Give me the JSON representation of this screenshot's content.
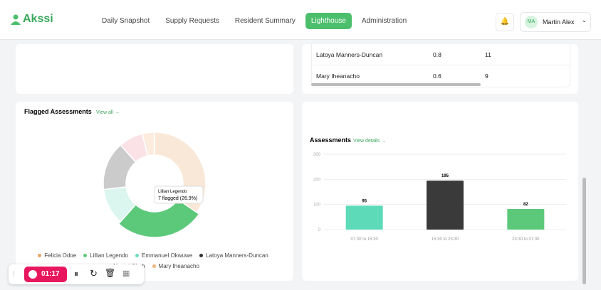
{
  "header": {
    "logo": "Akssi",
    "nav": [
      "Daily Snapshot",
      "Supply Requests",
      "Resident Summary",
      "Lighthouse",
      "Administration"
    ],
    "active_nav": "Lighthouse",
    "user_initials": "MA",
    "user_name": "Martin Alex"
  },
  "table": {
    "rows": [
      [
        "Latoya Manners-Duncan",
        0.8,
        11
      ],
      [
        "Mary Iheanacho",
        0.6,
        9
      ]
    ]
  },
  "flagged": {
    "type": "pie",
    "title": "Flagged Assessments",
    "link": "View all →",
    "labels": [
      "Felicia Odoe",
      "Lillian Legendo",
      "Emmanuel Okwuwe",
      "Latoya Manners-Duncan",
      "Naomi Okeh",
      "Mary Iheanacho"
    ],
    "values": [
      9,
      7,
      3,
      4,
      2,
      1
    ],
    "colors": [
      "#e9a25f",
      "#5cc97a",
      "#6fdcbf",
      "#2f2f2f",
      "#f08a9a",
      "#f2b27a"
    ],
    "tooltip": {
      "title": "Lillian Legendo",
      "text": "7 flagged (26.9%)"
    }
  },
  "assessments": {
    "type": "bar",
    "title": "Assessments",
    "link": "View details →",
    "categories": [
      "07:30 to 15:30",
      "15:30 to 23:30",
      "23:30 to 07:30"
    ],
    "values": [
      95,
      195,
      82
    ],
    "colors": [
      "#5ddbb8",
      "#3a3a3a",
      "#5cc97a"
    ],
    "ylim": [
      0,
      300
    ],
    "yticks": [
      0,
      100,
      200,
      300
    ]
  },
  "recorder": {
    "time": "01:17"
  }
}
